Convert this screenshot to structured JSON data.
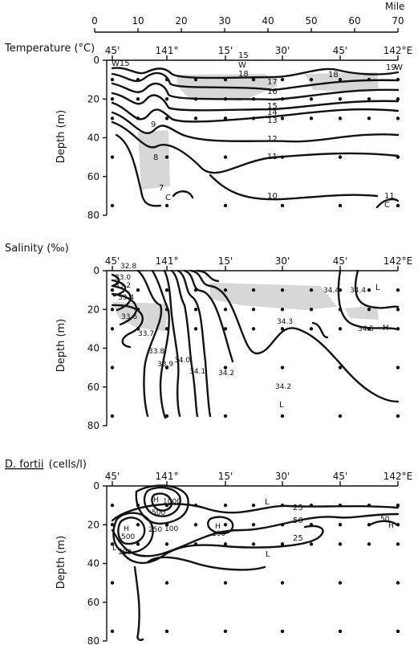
{
  "mile_scale": {
    "unit": "Mile",
    "ticks": [
      "0",
      "10",
      "20",
      "30",
      "40",
      "50",
      "60",
      "70"
    ]
  },
  "lon_ticks": [
    "45'",
    "141°",
    "15'",
    "30'",
    "45'",
    "142°E"
  ],
  "depth_ticks": [
    "0",
    "20",
    "40",
    "60",
    "80"
  ],
  "depth_label": "Depth (m)",
  "panels": {
    "temperature": {
      "title": "Temperature (°C)",
      "contour_labels": [
        "W15",
        "15",
        "W",
        "18",
        "18",
        "19",
        "W",
        "17",
        "16",
        "15",
        "14",
        "13",
        "12",
        "11",
        "10",
        "9",
        "8",
        "7",
        "C",
        "11",
        "C"
      ]
    },
    "salinity": {
      "title": "Salinity (‰)",
      "contour_labels": [
        "32.8",
        "33.0",
        "33.2",
        "33.4",
        "33.6",
        "33.7",
        "33.8",
        "33.9",
        "34.0",
        "34.1",
        "34.2",
        "34.3",
        "34.2",
        "34.4",
        "34.4",
        "34.5",
        "L",
        "H",
        "L"
      ]
    },
    "fortii": {
      "title_species": "D. fortii",
      "title_unit": "(cells/l)",
      "contour_labels": [
        "L",
        "H",
        "1000",
        "500",
        "H",
        "500",
        "250",
        "100",
        "L",
        "100",
        "H",
        "100",
        "25",
        "50",
        "25",
        "L",
        "50",
        "H"
      ]
    }
  },
  "chart_data": [
    {
      "type": "contour",
      "title": "Temperature (°C)",
      "x_axis": "longitude",
      "x_ticks": [
        "45'",
        "141°",
        "15'",
        "30'",
        "45'",
        "142°E"
      ],
      "ylabel": "Depth (m)",
      "ylim": [
        0,
        80
      ],
      "isotherm_levels": [
        7,
        8,
        9,
        10,
        11,
        12,
        13,
        14,
        15,
        16,
        17,
        18,
        19
      ],
      "annotations": [
        "W",
        "C"
      ]
    },
    {
      "type": "contour",
      "title": "Salinity (‰)",
      "x_axis": "longitude",
      "x_ticks": [
        "45'",
        "141°",
        "15'",
        "30'",
        "45'",
        "142°E"
      ],
      "ylabel": "Depth (m)",
      "ylim": [
        0,
        80
      ],
      "isohaline_levels": [
        32.8,
        33.0,
        33.2,
        33.4,
        33.6,
        33.7,
        33.8,
        33.9,
        34.0,
        34.1,
        34.2,
        34.3,
        34.4,
        34.5
      ],
      "annotations": [
        "L",
        "H"
      ]
    },
    {
      "type": "contour",
      "title": "D. fortii (cells/l)",
      "x_axis": "longitude",
      "x_ticks": [
        "45'",
        "141°",
        "15'",
        "30'",
        "45'",
        "142°E"
      ],
      "ylabel": "Depth (m)",
      "ylim": [
        0,
        80
      ],
      "abundance_levels": [
        25,
        50,
        100,
        250,
        500,
        1000
      ],
      "annotations": [
        "L",
        "H"
      ]
    }
  ]
}
